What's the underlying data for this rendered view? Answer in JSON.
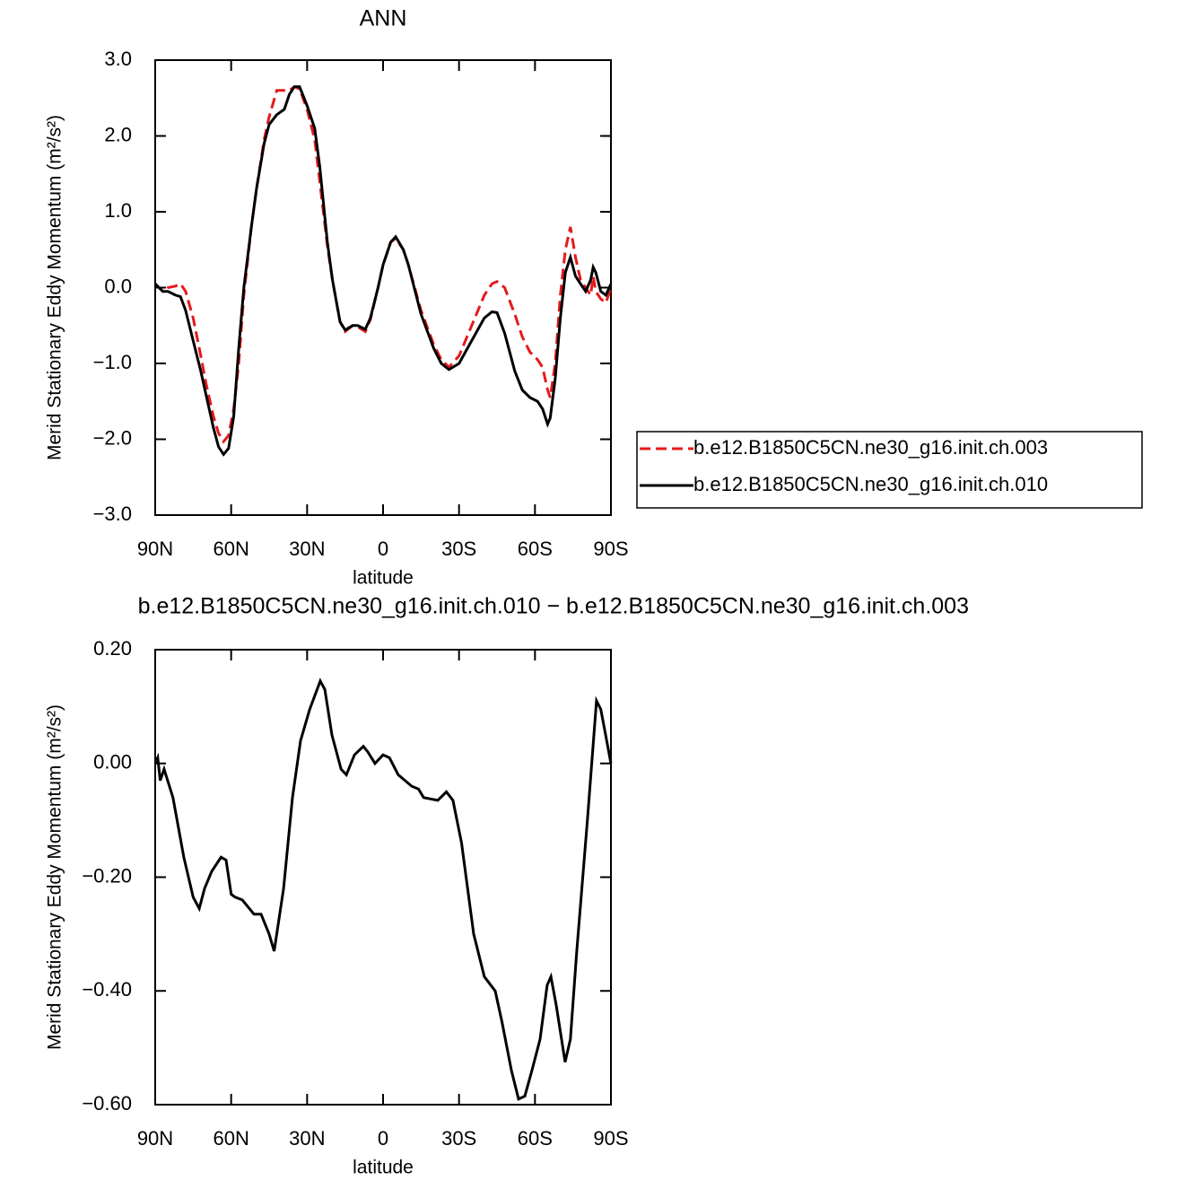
{
  "chart_data": [
    {
      "type": "line",
      "title": "ANN",
      "x_label": "latitude",
      "y_label": "Merid Stationary Eddy Momentum (m²/s²)",
      "x": [
        90,
        87,
        85,
        82,
        80,
        78,
        75,
        72,
        70,
        67,
        65,
        63,
        61,
        59,
        57,
        55,
        52,
        50,
        47,
        45,
        42,
        39,
        37,
        35,
        33,
        30,
        27,
        25,
        22,
        20,
        17,
        15,
        12,
        10,
        7,
        5,
        2,
        0,
        -3,
        -5,
        -8,
        -10,
        -15,
        -20,
        -23,
        -26,
        -30,
        -35,
        -40,
        -43,
        -45,
        -48,
        -52,
        -55,
        -58,
        -61,
        -63,
        -65,
        -66,
        -68,
        -70,
        -72,
        -74,
        -76,
        -78,
        -80,
        -82,
        -83,
        -84,
        -86,
        -88,
        -90
      ],
      "series": [
        {
          "name": "b.e12.B1850C5CN.ne30_g16.init.ch.003",
          "color": "#e41a1c",
          "dash": "dashed",
          "values": [
            0.05,
            -0.05,
            0.0,
            0.02,
            0.05,
            -0.05,
            -0.4,
            -0.9,
            -1.25,
            -1.7,
            -1.92,
            -2.03,
            -1.95,
            -1.6,
            -1.0,
            -0.1,
            0.8,
            1.3,
            1.95,
            2.25,
            2.6,
            2.6,
            2.6,
            2.65,
            2.62,
            2.35,
            1.95,
            1.4,
            0.55,
            0.1,
            -0.45,
            -0.58,
            -0.5,
            -0.52,
            -0.58,
            -0.42,
            0.0,
            0.3,
            0.6,
            0.65,
            0.5,
            0.3,
            -0.3,
            -0.75,
            -0.95,
            -1.05,
            -0.9,
            -0.5,
            -0.1,
            0.05,
            0.08,
            0.0,
            -0.35,
            -0.65,
            -0.85,
            -0.95,
            -1.05,
            -1.35,
            -1.45,
            -1.0,
            -0.1,
            0.5,
            0.8,
            0.4,
            0.1,
            0.0,
            -0.1,
            0.15,
            -0.05,
            -0.15,
            -0.2,
            0.0
          ]
        },
        {
          "name": "b.e12.B1850C5CN.ne30_g16.init.ch.010",
          "color": "#000000",
          "dash": "solid",
          "values": [
            0.05,
            -0.05,
            -0.05,
            -0.1,
            -0.12,
            -0.3,
            -0.7,
            -1.1,
            -1.4,
            -1.85,
            -2.1,
            -2.2,
            -2.12,
            -1.7,
            -0.8,
            0.0,
            0.8,
            1.3,
            1.9,
            2.15,
            2.28,
            2.35,
            2.55,
            2.65,
            2.65,
            2.4,
            2.1,
            1.6,
            0.6,
            0.1,
            -0.45,
            -0.56,
            -0.5,
            -0.5,
            -0.55,
            -0.4,
            0.0,
            0.3,
            0.6,
            0.67,
            0.5,
            0.3,
            -0.35,
            -0.8,
            -1.0,
            -1.08,
            -1.0,
            -0.7,
            -0.4,
            -0.32,
            -0.33,
            -0.6,
            -1.1,
            -1.35,
            -1.45,
            -1.5,
            -1.6,
            -1.8,
            -1.72,
            -1.2,
            -0.4,
            0.2,
            0.4,
            0.15,
            0.05,
            -0.05,
            0.1,
            0.27,
            0.2,
            -0.05,
            -0.1,
            0.05
          ]
        }
      ],
      "xlim": [
        90,
        -90
      ],
      "xticks": [
        {
          "value": 90,
          "label": "90N"
        },
        {
          "value": 60,
          "label": "60N"
        },
        {
          "value": 30,
          "label": "30N"
        },
        0,
        {
          "value": -30,
          "label": "30S"
        },
        {
          "value": -60,
          "label": "60S"
        },
        {
          "value": -90,
          "label": "90S"
        }
      ],
      "ylim": [
        -3,
        3
      ],
      "yticks": [
        {
          "value": -3,
          "label": "−3.0"
        },
        {
          "value": -2,
          "label": "−2.0"
        },
        {
          "value": -1,
          "label": "−1.0"
        },
        {
          "value": 0,
          "label": "0.0"
        },
        {
          "value": 1,
          "label": "1.0"
        },
        {
          "value": 2,
          "label": "2.0"
        },
        {
          "value": 3,
          "label": "3.0"
        }
      ],
      "legend": "right"
    },
    {
      "type": "line",
      "title": "b.e12.B1850C5CN.ne30_g16.init.ch.010 − b.e12.B1850C5CN.ne30_g16.init.ch.003",
      "x_label": "latitude",
      "y_label": "Merid Stationary Eddy Momentum (m²/s²)",
      "x": [
        90,
        89,
        88,
        86.5,
        83,
        78.7,
        75,
        72.6,
        70.5,
        67.7,
        64,
        62,
        60,
        58.5,
        55.6,
        51,
        48.2,
        45,
        43,
        39.3,
        35.8,
        32.6,
        29,
        24.8,
        23,
        20.2,
        16.6,
        14.5,
        11.3,
        7.8,
        6,
        3.2,
        0,
        -2.5,
        -6,
        -11.3,
        -14,
        -16,
        -21.6,
        -25,
        -27.6,
        -31,
        -35.8,
        -40,
        -44.3,
        -47,
        -50.7,
        -53.5,
        -56,
        -58.8,
        -62,
        -64.8,
        -66.3,
        -68.4,
        -71.9,
        -74,
        -76.5,
        -80.8,
        -84.3,
        -86,
        -87.9,
        -90
      ],
      "series": [
        {
          "color": "#000000",
          "dash": "solid",
          "values": [
            0.0,
            0.01,
            -0.03,
            -0.01,
            -0.06,
            -0.165,
            -0.235,
            -0.255,
            -0.22,
            -0.19,
            -0.165,
            -0.17,
            -0.23,
            -0.235,
            -0.24,
            -0.265,
            -0.265,
            -0.3,
            -0.33,
            -0.22,
            -0.06,
            0.04,
            0.095,
            0.145,
            0.13,
            0.05,
            -0.01,
            -0.02,
            0.015,
            0.03,
            0.02,
            0.0,
            0.015,
            0.01,
            -0.02,
            -0.04,
            -0.045,
            -0.06,
            -0.065,
            -0.05,
            -0.065,
            -0.14,
            -0.3,
            -0.375,
            -0.4,
            -0.455,
            -0.54,
            -0.59,
            -0.585,
            -0.54,
            -0.485,
            -0.39,
            -0.375,
            -0.425,
            -0.525,
            -0.485,
            -0.33,
            -0.095,
            0.11,
            0.095,
            0.05,
            0.0
          ]
        }
      ],
      "xlim": [
        90,
        -90
      ],
      "xticks": [
        {
          "value": 90,
          "label": "90N"
        },
        {
          "value": 60,
          "label": "60N"
        },
        {
          "value": 30,
          "label": "30N"
        },
        0,
        {
          "value": -30,
          "label": "30S"
        },
        {
          "value": -60,
          "label": "60S"
        },
        {
          "value": -90,
          "label": "90S"
        }
      ],
      "ylim": [
        -0.6,
        0.2
      ],
      "yticks": [
        {
          "value": -0.6,
          "label": "−0.60"
        },
        {
          "value": -0.4,
          "label": "−0.40"
        },
        {
          "value": -0.2,
          "label": "−0.20"
        },
        {
          "value": 0,
          "label": "0.00"
        },
        {
          "value": 0.2,
          "label": "0.20"
        }
      ]
    }
  ]
}
